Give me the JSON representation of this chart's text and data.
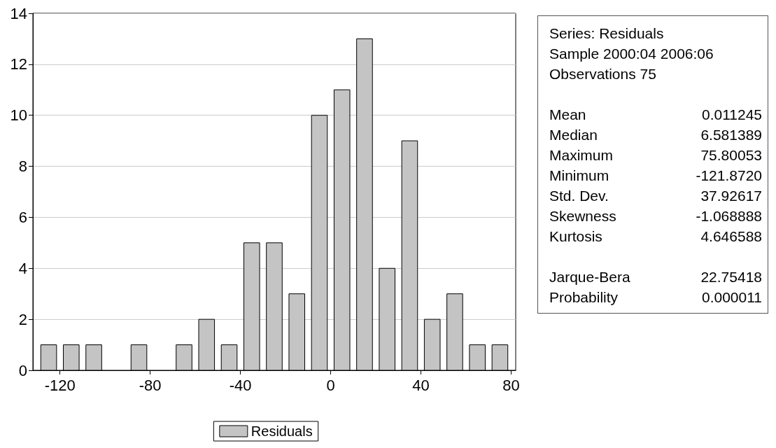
{
  "chart_data": [
    {
      "type": "histogram",
      "bins": [
        -130,
        -120,
        -110,
        -100,
        -90,
        -80,
        -70,
        -60,
        -50,
        -40,
        -30,
        -20,
        -10,
        0,
        10,
        20,
        30,
        40,
        50,
        60,
        70,
        80
      ],
      "series": [
        {
          "name": "Residuals",
          "color": "#c4c4c4",
          "values": [
            1,
            1,
            1,
            0,
            1,
            0,
            1,
            2,
            1,
            5,
            5,
            3,
            10,
            11,
            13,
            4,
            9,
            2,
            3,
            1,
            1
          ]
        }
      ],
      "xlim": [
        -132,
        82
      ],
      "xticks": [
        -120,
        -80,
        -40,
        0,
        40,
        80
      ],
      "ylim": [
        0,
        14
      ],
      "yticks": [
        0,
        2,
        4,
        6,
        8,
        10,
        12,
        14
      ],
      "grid": "y",
      "legend": "bottom"
    },
    {
      "type": "other",
      "annotations": [
        "Series: Residuals",
        "Sample 2000:04 2006:06",
        "Observations 75",
        "Mean 0.011245",
        "Median 6.581389",
        "Maximum 75.80053",
        "Minimum -121.8720",
        "Std. Dev. 37.92617",
        "Skewness -1.068888",
        "Kurtosis 4.646588",
        "Jarque-Bera 22.75418",
        "Probability 0.000011"
      ]
    }
  ]
}
